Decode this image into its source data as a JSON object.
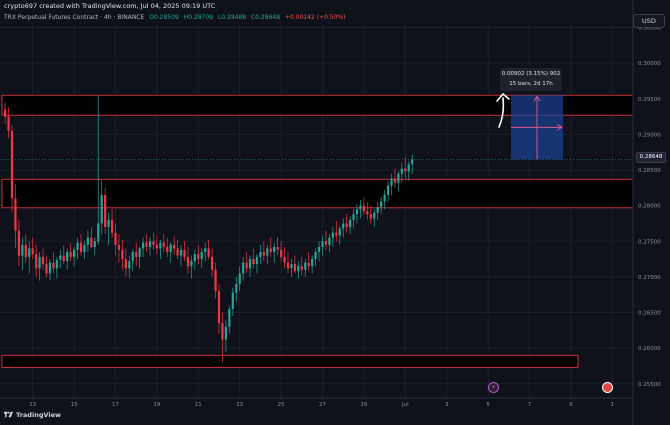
{
  "header": {
    "credit": "crypto697 created with TradingView.com, Jul 04, 2025 09:19 UTC",
    "title": "TRX Perpetual Futures Contract · 4h · BINANCE",
    "ohlc": {
      "o": "O0.28509",
      "h": "H0.28709",
      "l": "L0.28488",
      "c": "C0.28648",
      "chg": "+0.00142 (+0.50%)"
    }
  },
  "currency_button": "USD",
  "measure": {
    "line1": "0.00902 (3.15%) 902",
    "line2": "15 bars, 2d 17h"
  },
  "last_price": "0.28648",
  "brand": "TradingView",
  "colors": {
    "background": "#0f121a",
    "up": "#26a69a",
    "down": "#f23645",
    "zone_border": "#f23645",
    "measure_fill": "#1c3f8f",
    "arrow": "#ff5c8a"
  },
  "icons": {
    "event_left": "lightning-event-icon",
    "event_right": "calendar-event-icon"
  },
  "chart_data": {
    "type": "candlestick",
    "title": "TRX Perpetual Futures Contract · 4h · BINANCE",
    "ylim": [
      0.253,
      0.3055
    ],
    "y_ticks": [
      "0.30500",
      "0.30000",
      "0.29500",
      "0.29000",
      "0.28500",
      "0.28000",
      "0.27500",
      "0.27000",
      "0.26500",
      "0.26000",
      "0.25500"
    ],
    "y_tick_values": [
      0.305,
      0.3,
      0.295,
      0.29,
      0.285,
      0.28,
      0.275,
      0.27,
      0.265,
      0.26,
      0.255
    ],
    "x_ticks": [
      "13",
      "15",
      "17",
      "19",
      "21",
      "23",
      "25",
      "27",
      "29",
      "Jul",
      "3",
      "5",
      "7",
      "9",
      "1"
    ],
    "x_tick_bar_index": [
      6,
      18,
      30,
      42,
      54,
      66,
      78,
      90,
      102,
      114,
      126,
      138,
      150,
      162,
      174
    ],
    "candles": [
      [
        0.2935,
        0.2945,
        0.2915,
        0.2925
      ],
      [
        0.2925,
        0.2938,
        0.2895,
        0.2905
      ],
      [
        0.2905,
        0.2912,
        0.279,
        0.281
      ],
      [
        0.281,
        0.283,
        0.274,
        0.2765
      ],
      [
        0.2765,
        0.278,
        0.2715,
        0.273
      ],
      [
        0.273,
        0.2755,
        0.271,
        0.2745
      ],
      [
        0.2745,
        0.276,
        0.272,
        0.2728
      ],
      [
        0.2728,
        0.275,
        0.2705,
        0.274
      ],
      [
        0.274,
        0.2755,
        0.2725,
        0.2732
      ],
      [
        0.2732,
        0.2745,
        0.27,
        0.2712
      ],
      [
        0.2712,
        0.2735,
        0.2695,
        0.2728
      ],
      [
        0.2728,
        0.274,
        0.271,
        0.2718
      ],
      [
        0.2718,
        0.273,
        0.27,
        0.2705
      ],
      [
        0.2705,
        0.2725,
        0.2695,
        0.272
      ],
      [
        0.272,
        0.2735,
        0.2705,
        0.2712
      ],
      [
        0.2712,
        0.2728,
        0.2698,
        0.2724
      ],
      [
        0.2724,
        0.2738,
        0.2712,
        0.273
      ],
      [
        0.273,
        0.2745,
        0.2718,
        0.2722
      ],
      [
        0.2722,
        0.274,
        0.271,
        0.2735
      ],
      [
        0.2735,
        0.2748,
        0.2722,
        0.2728
      ],
      [
        0.2728,
        0.2742,
        0.2715,
        0.2738
      ],
      [
        0.2738,
        0.2755,
        0.2725,
        0.2748
      ],
      [
        0.2748,
        0.276,
        0.273,
        0.2735
      ],
      [
        0.2735,
        0.275,
        0.2725,
        0.2745
      ],
      [
        0.2745,
        0.2765,
        0.2735,
        0.2755
      ],
      [
        0.2755,
        0.277,
        0.274,
        0.2742
      ],
      [
        0.2742,
        0.2755,
        0.273,
        0.275
      ],
      [
        0.275,
        0.2955,
        0.2745,
        0.2775
      ],
      [
        0.2775,
        0.2835,
        0.276,
        0.2815
      ],
      [
        0.2815,
        0.2825,
        0.276,
        0.277
      ],
      [
        0.277,
        0.279,
        0.2745,
        0.278
      ],
      [
        0.278,
        0.2795,
        0.2755,
        0.2762
      ],
      [
        0.2762,
        0.2775,
        0.273,
        0.2745
      ],
      [
        0.2745,
        0.276,
        0.272,
        0.2738
      ],
      [
        0.2738,
        0.2752,
        0.271,
        0.2725
      ],
      [
        0.2725,
        0.274,
        0.27,
        0.2712
      ],
      [
        0.2712,
        0.273,
        0.2698,
        0.2722
      ],
      [
        0.2722,
        0.2738,
        0.2708,
        0.2735
      ],
      [
        0.2735,
        0.2748,
        0.2715,
        0.2728
      ],
      [
        0.2728,
        0.2742,
        0.2712,
        0.274
      ],
      [
        0.274,
        0.2755,
        0.2728,
        0.2748
      ],
      [
        0.2748,
        0.276,
        0.2735,
        0.2742
      ],
      [
        0.2742,
        0.2756,
        0.273,
        0.275
      ],
      [
        0.275,
        0.2762,
        0.2738,
        0.2745
      ],
      [
        0.2745,
        0.2758,
        0.2732,
        0.274
      ],
      [
        0.274,
        0.2752,
        0.2725,
        0.2748
      ],
      [
        0.2748,
        0.276,
        0.2735,
        0.2742
      ],
      [
        0.2742,
        0.2755,
        0.2728,
        0.2735
      ],
      [
        0.2735,
        0.2748,
        0.272,
        0.2745
      ],
      [
        0.2745,
        0.2758,
        0.2732,
        0.274
      ],
      [
        0.274,
        0.2752,
        0.2725,
        0.273
      ],
      [
        0.273,
        0.2745,
        0.2715,
        0.2738
      ],
      [
        0.2738,
        0.275,
        0.2722,
        0.2728
      ],
      [
        0.2728,
        0.2742,
        0.2705,
        0.2715
      ],
      [
        0.2715,
        0.273,
        0.2698,
        0.2722
      ],
      [
        0.2722,
        0.2738,
        0.271,
        0.2732
      ],
      [
        0.2732,
        0.2745,
        0.2718,
        0.2725
      ],
      [
        0.2725,
        0.274,
        0.2712,
        0.2735
      ],
      [
        0.2735,
        0.2748,
        0.2722,
        0.274
      ],
      [
        0.274,
        0.2752,
        0.2725,
        0.2728
      ],
      [
        0.2728,
        0.274,
        0.27,
        0.271
      ],
      [
        0.271,
        0.272,
        0.267,
        0.268
      ],
      [
        0.268,
        0.269,
        0.262,
        0.2635
      ],
      [
        0.2635,
        0.265,
        0.258,
        0.2612
      ],
      [
        0.2612,
        0.264,
        0.2595,
        0.263
      ],
      [
        0.263,
        0.266,
        0.262,
        0.2655
      ],
      [
        0.2655,
        0.2685,
        0.2645,
        0.2678
      ],
      [
        0.2678,
        0.27,
        0.2665,
        0.269
      ],
      [
        0.269,
        0.2715,
        0.268,
        0.2705
      ],
      [
        0.2705,
        0.2728,
        0.2695,
        0.272
      ],
      [
        0.272,
        0.2735,
        0.2705,
        0.2712
      ],
      [
        0.2712,
        0.273,
        0.27,
        0.2725
      ],
      [
        0.2725,
        0.274,
        0.2712,
        0.2718
      ],
      [
        0.2718,
        0.2732,
        0.2705,
        0.2728
      ],
      [
        0.2728,
        0.2745,
        0.2718,
        0.2735
      ],
      [
        0.2735,
        0.275,
        0.2722,
        0.273
      ],
      [
        0.273,
        0.2745,
        0.2718,
        0.274
      ],
      [
        0.274,
        0.2755,
        0.2728,
        0.2735
      ],
      [
        0.2735,
        0.2748,
        0.272,
        0.2742
      ],
      [
        0.2742,
        0.2756,
        0.273,
        0.2738
      ],
      [
        0.2738,
        0.275,
        0.2722,
        0.2728
      ],
      [
        0.2728,
        0.2742,
        0.2712,
        0.272
      ],
      [
        0.272,
        0.2735,
        0.2705,
        0.2712
      ],
      [
        0.2712,
        0.2725,
        0.27,
        0.2718
      ],
      [
        0.2718,
        0.273,
        0.2705,
        0.2708
      ],
      [
        0.2708,
        0.2722,
        0.2698,
        0.2715
      ],
      [
        0.2715,
        0.2728,
        0.2702,
        0.271
      ],
      [
        0.271,
        0.2725,
        0.27,
        0.272
      ],
      [
        0.272,
        0.2735,
        0.2708,
        0.2715
      ],
      [
        0.2715,
        0.273,
        0.2705,
        0.2725
      ],
      [
        0.2725,
        0.274,
        0.2715,
        0.2735
      ],
      [
        0.2735,
        0.275,
        0.2722,
        0.2742
      ],
      [
        0.2742,
        0.2758,
        0.273,
        0.275
      ],
      [
        0.275,
        0.2765,
        0.2738,
        0.2745
      ],
      [
        0.2745,
        0.276,
        0.2735,
        0.2755
      ],
      [
        0.2755,
        0.277,
        0.2742,
        0.2762
      ],
      [
        0.2762,
        0.2778,
        0.275,
        0.2758
      ],
      [
        0.2758,
        0.2772,
        0.2745,
        0.2768
      ],
      [
        0.2768,
        0.2782,
        0.2755,
        0.2775
      ],
      [
        0.2775,
        0.2788,
        0.2762,
        0.277
      ],
      [
        0.277,
        0.2785,
        0.276,
        0.278
      ],
      [
        0.278,
        0.2795,
        0.2768,
        0.2788
      ],
      [
        0.2788,
        0.2802,
        0.2775,
        0.2795
      ],
      [
        0.2795,
        0.2808,
        0.2782,
        0.28
      ],
      [
        0.28,
        0.2812,
        0.2788,
        0.2792
      ],
      [
        0.2792,
        0.2805,
        0.278,
        0.2788
      ],
      [
        0.2788,
        0.28,
        0.2775,
        0.2782
      ],
      [
        0.2782,
        0.2795,
        0.277,
        0.279
      ],
      [
        0.279,
        0.2805,
        0.278,
        0.2798
      ],
      [
        0.2798,
        0.2812,
        0.2788,
        0.2806
      ],
      [
        0.2806,
        0.2822,
        0.2795,
        0.2815
      ],
      [
        0.2815,
        0.2835,
        0.2805,
        0.2828
      ],
      [
        0.2828,
        0.2845,
        0.2815,
        0.2838
      ],
      [
        0.2838,
        0.2852,
        0.2825,
        0.2832
      ],
      [
        0.2832,
        0.2848,
        0.282,
        0.2845
      ],
      [
        0.2845,
        0.286,
        0.2832,
        0.2852
      ],
      [
        0.2852,
        0.2868,
        0.2838,
        0.2848
      ],
      [
        0.2848,
        0.2862,
        0.2835,
        0.2858
      ],
      [
        0.2858,
        0.2872,
        0.2845,
        0.2865
      ]
    ],
    "zones": [
      {
        "top": 0.2955,
        "bottom": 0.2927
      },
      {
        "top": 0.2837,
        "bottom": 0.2797
      },
      {
        "top": 0.259,
        "bottom": 0.2573
      }
    ],
    "measurement": {
      "from_price": 0.2865,
      "to_price": 0.2955,
      "change": "0.00902 (3.15%) 902",
      "bars": "15 bars, 2d 17h"
    },
    "last_price": 0.28648
  }
}
